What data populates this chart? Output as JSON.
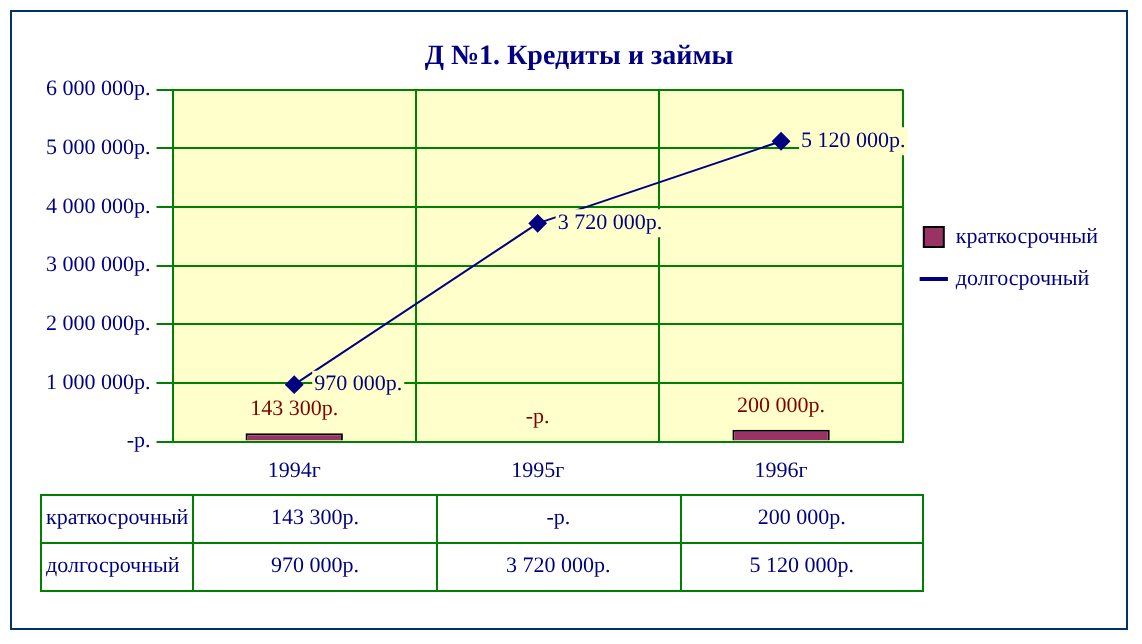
{
  "chart_data": {
    "type": "bar",
    "title": "Д №1. Кредиты и займы",
    "categories": [
      "1994г",
      "1995г",
      "1996г"
    ],
    "series": [
      {
        "name": "краткосрочный",
        "color": "#993366",
        "values": [
          143300,
          0,
          200000
        ],
        "value_labels": [
          "143 300р.",
          "-р.",
          "200 000р."
        ]
      },
      {
        "name": "долгосрочный",
        "type": "line",
        "color": "#000080",
        "values": [
          970000,
          3720000,
          5120000
        ],
        "value_labels": [
          "970 000р.",
          "3 720 000р.",
          "5 120 000р."
        ]
      }
    ],
    "ylim": [
      0,
      6000000
    ],
    "yticks": [
      {
        "value": 0,
        "label": "-р."
      },
      {
        "value": 1000000,
        "label": "1 000 000р."
      },
      {
        "value": 2000000,
        "label": "2 000 000р."
      },
      {
        "value": 3000000,
        "label": "3 000 000р."
      },
      {
        "value": 4000000,
        "label": "4 000 000р."
      },
      {
        "value": 5000000,
        "label": "5 000 000р."
      },
      {
        "value": 6000000,
        "label": "6 000 000р."
      }
    ],
    "grid": true,
    "legend": "right",
    "marker": "diamond"
  }
}
